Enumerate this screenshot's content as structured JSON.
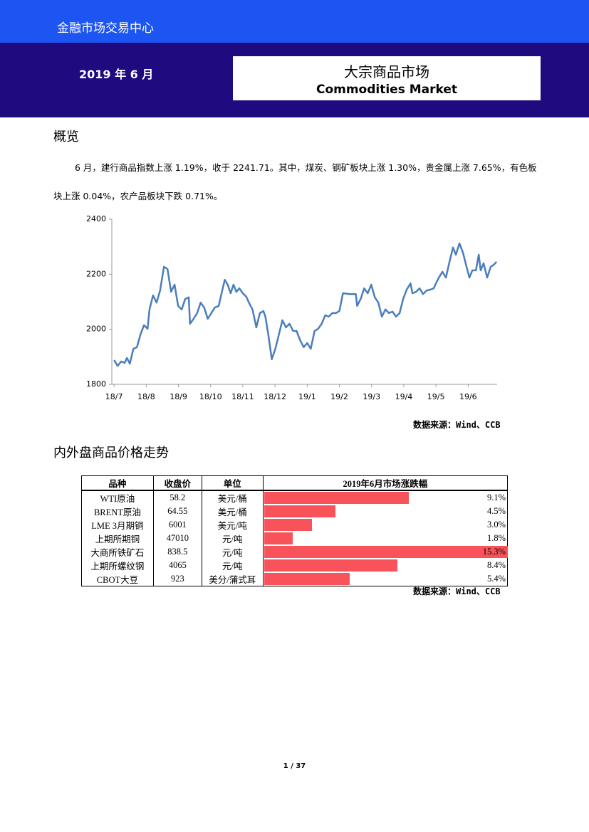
{
  "header": {
    "top": "金融市场交易中心",
    "date": "2019 年 6 月",
    "title_cn": "大宗商品市场",
    "title_en": "Commodities Market"
  },
  "overview": {
    "heading": "概览",
    "paragraph": "6 月，建行商品指数上涨 1.19%，收于 2241.71。其中，煤炭、钢矿板块上涨 1.30%，贵金属上涨 7.65%，有色板块上涨 0.04%，农产品板块下跌 0.71%。"
  },
  "chart_data": {
    "type": "line",
    "color": "#4a7ebb",
    "x": [
      0,
      0.11,
      0.22,
      0.33,
      0.4,
      0.49,
      0.6,
      0.71,
      0.82,
      0.93,
      1.04,
      1.1,
      1.21,
      1.32,
      1.43,
      1.55,
      1.66,
      1.77,
      1.88,
      1.99,
      2.1,
      2.21,
      2.32,
      2.36,
      2.47,
      2.58,
      2.69,
      2.8,
      2.91,
      3.02,
      3.13,
      3.25,
      3.36,
      3.44,
      3.53,
      3.62,
      3.71,
      3.8,
      3.89,
      4.0,
      4.11,
      4.19,
      4.3,
      4.42,
      4.53,
      4.64,
      4.7,
      4.79,
      4.9,
      5.01,
      5.12,
      5.23,
      5.34,
      5.45,
      5.56,
      5.67,
      5.78,
      5.89,
      6.0,
      6.11,
      6.23,
      6.34,
      6.45,
      6.56,
      6.67,
      6.78,
      6.89,
      7.0,
      7.11,
      7.33,
      7.51,
      7.55,
      7.66,
      7.77,
      7.88,
      7.99,
      8.1,
      8.21,
      8.32,
      8.43,
      8.54,
      8.65,
      8.76,
      8.87,
      8.98,
      9.09,
      9.21,
      9.27,
      9.38,
      9.49,
      9.6,
      9.71,
      9.82,
      9.93,
      9.98,
      10.09,
      10.2,
      10.31,
      10.42,
      10.53,
      10.62,
      10.73,
      10.84,
      10.95,
      11.04,
      11.13,
      11.24,
      11.33,
      11.39,
      11.48,
      11.59,
      11.7,
      11.79,
      11.88
    ],
    "values": [
      1888,
      1867,
      1883,
      1878,
      1896,
      1875,
      1929,
      1935,
      1981,
      2015,
      2002,
      2072,
      2123,
      2097,
      2141,
      2227,
      2219,
      2136,
      2162,
      2085,
      2072,
      2110,
      2116,
      2020,
      2038,
      2059,
      2097,
      2079,
      2038,
      2059,
      2079,
      2085,
      2141,
      2180,
      2162,
      2131,
      2162,
      2136,
      2149,
      2131,
      2118,
      2097,
      2072,
      2007,
      2059,
      2066,
      2046,
      1981,
      1891,
      1929,
      1981,
      2033,
      2007,
      2020,
      1994,
      1994,
      1960,
      1935,
      1950,
      1929,
      1994,
      2002,
      2020,
      2051,
      2046,
      2059,
      2059,
      2066,
      2131,
      2128,
      2128,
      2085,
      2110,
      2149,
      2131,
      2162,
      2116,
      2097,
      2046,
      2072,
      2059,
      2064,
      2046,
      2059,
      2110,
      2144,
      2167,
      2131,
      2136,
      2149,
      2128,
      2141,
      2144,
      2149,
      2162,
      2188,
      2209,
      2188,
      2245,
      2297,
      2271,
      2312,
      2278,
      2227,
      2188,
      2214,
      2214,
      2271,
      2214,
      2240,
      2188,
      2227,
      2234,
      2245
    ],
    "xlim": [
      -0.07,
      11.9
    ],
    "xticks": [
      {
        "value": 0,
        "label": "18/7"
      },
      {
        "value": 1,
        "label": "18/8"
      },
      {
        "value": 2,
        "label": "18/9"
      },
      {
        "value": 3,
        "label": "18/10"
      },
      {
        "value": 4,
        "label": "18/11"
      },
      {
        "value": 5,
        "label": "18/12"
      },
      {
        "value": 6,
        "label": "19/1"
      },
      {
        "value": 7,
        "label": "19/2"
      },
      {
        "value": 8,
        "label": "19/3"
      },
      {
        "value": 9,
        "label": "19/4"
      },
      {
        "value": 10,
        "label": "19/5"
      },
      {
        "value": 11,
        "label": "19/6"
      }
    ],
    "ylim": [
      1800,
      2400
    ],
    "yticks": [
      1800,
      2000,
      2200,
      2400
    ]
  },
  "source1": "数据来源：Wind、CCB",
  "section2": {
    "heading": "内外盘商品价格走势"
  },
  "table": {
    "headers": [
      "品种",
      "收盘价",
      "单位",
      "2019年6月市场涨跌幅"
    ],
    "names": [
      "WTI原油",
      "BRENT原油",
      "LME 3月期铜",
      "上期所期铜",
      "大商所铁矿石",
      "上期所螺纹钢",
      "CBOT大豆"
    ],
    "closes": [
      58.2,
      64.55,
      6001,
      47010,
      838.5,
      4065,
      923
    ],
    "units": [
      "美元/桶",
      "美元/桶",
      "美元/吨",
      "元/吨",
      "元/吨",
      "元/吨",
      "美分/蒲式耳"
    ],
    "changes": [
      9.1,
      4.5,
      3.0,
      1.8,
      15.3,
      8.4,
      5.4
    ],
    "change_labels": [
      "9.1%",
      "4.5%",
      "3.0%",
      "1.8%",
      "15.3%",
      "8.4%",
      "5.4%"
    ],
    "bar_color": "#f8535a"
  },
  "source2": "数据来源：Wind、CCB",
  "footer": {
    "page": "1 / 37"
  }
}
